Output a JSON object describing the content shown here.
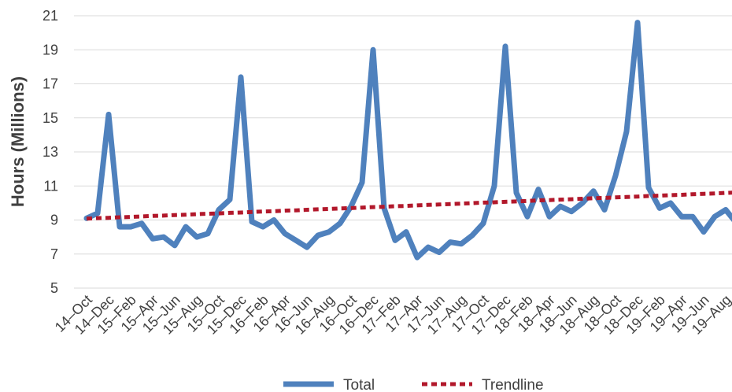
{
  "chart_data": {
    "type": "line",
    "title": "",
    "xlabel": "",
    "ylabel": "Hours (Millions)",
    "ylim": [
      5,
      21
    ],
    "y_ticks": [
      5,
      7,
      9,
      11,
      13,
      15,
      17,
      19,
      21
    ],
    "grid": "horizontal",
    "legend_position": "bottom",
    "x_labels": [
      "14–Oct",
      "14–Dec",
      "15–Feb",
      "15–Apr",
      "15–Jun",
      "15–Aug",
      "15–Oct",
      "15–Dec",
      "16–Feb",
      "16–Apr",
      "16–Jun",
      "16–Aug",
      "16–Oct",
      "16–Dec",
      "17–Feb",
      "17–Apr",
      "17–Jun",
      "17–Aug",
      "17–Oct",
      "17–Dec",
      "18–Feb",
      "18–Apr",
      "18–Jun",
      "18–Aug",
      "18–Oct",
      "18–Dec",
      "19–Feb",
      "19–Apr",
      "19–Jun",
      "19–Aug"
    ],
    "x_label_every": 2,
    "series": [
      {
        "name": "Total",
        "color": "#4F81BD",
        "style": "solid",
        "values": [
          9.1,
          9.4,
          15.2,
          8.6,
          8.6,
          8.8,
          7.9,
          8.0,
          7.5,
          8.6,
          8.0,
          8.2,
          9.6,
          10.2,
          17.4,
          8.9,
          8.6,
          9.0,
          8.2,
          7.8,
          7.4,
          8.1,
          8.3,
          8.8,
          9.8,
          11.2,
          19.0,
          9.7,
          7.8,
          8.3,
          6.8,
          7.4,
          7.1,
          7.7,
          7.6,
          8.1,
          8.8,
          11.0,
          19.2,
          10.6,
          9.2,
          10.8,
          9.2,
          9.8,
          9.5,
          10.0,
          10.7,
          9.6,
          11.6,
          14.2,
          20.6,
          10.9,
          9.7,
          10.0,
          9.2,
          9.2,
          8.3,
          9.2,
          9.6,
          8.8
        ]
      },
      {
        "name": "Trendline",
        "color": "#B2182B",
        "style": "dashed",
        "values": [
          9.08,
          9.11,
          9.13,
          9.16,
          9.18,
          9.21,
          9.24,
          9.26,
          9.29,
          9.31,
          9.34,
          9.37,
          9.39,
          9.42,
          9.44,
          9.47,
          9.5,
          9.52,
          9.55,
          9.57,
          9.6,
          9.63,
          9.65,
          9.68,
          9.7,
          9.73,
          9.76,
          9.78,
          9.81,
          9.83,
          9.86,
          9.89,
          9.91,
          9.94,
          9.96,
          9.99,
          10.02,
          10.04,
          10.07,
          10.09,
          10.12,
          10.15,
          10.17,
          10.2,
          10.22,
          10.25,
          10.28,
          10.3,
          10.33,
          10.35,
          10.38,
          10.41,
          10.43,
          10.46,
          10.48,
          10.51,
          10.54,
          10.56,
          10.59,
          10.62
        ]
      }
    ]
  }
}
